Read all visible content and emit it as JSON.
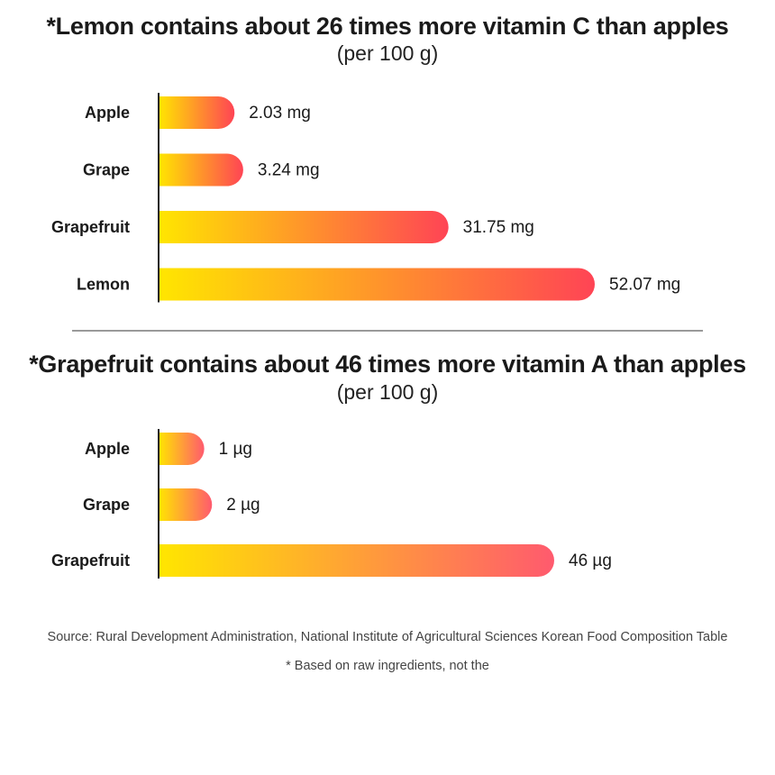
{
  "chart_data": [
    {
      "type": "bar",
      "orientation": "horizontal",
      "title": "*Lemon contains about 26 times more vitamin C than apples",
      "subtitle": "(per 100 g)",
      "categories": [
        "Apple",
        "Grape",
        "Grapefruit",
        "Lemon"
      ],
      "values": [
        2.03,
        3.24,
        31.75,
        52.07
      ],
      "value_labels": [
        "2.03 mg",
        "3.24 mg",
        "31.75 mg",
        "52.07 mg"
      ],
      "unit": "mg",
      "gradient": {
        "start": "#ffe600",
        "end": "#ff4455"
      }
    },
    {
      "type": "bar",
      "orientation": "horizontal",
      "title": "*Grapefruit contains about 46 times more vitamin A than apples",
      "subtitle": "(per 100 g)",
      "categories": [
        "Apple",
        "Grape",
        "Grapefruit"
      ],
      "values": [
        1,
        2,
        46
      ],
      "value_labels": [
        "1 µg",
        "2 µg",
        "46 µg"
      ],
      "unit": "µg",
      "gradient": {
        "start": "#ffe600",
        "end": "#ff5a6e"
      }
    }
  ],
  "footer": {
    "source": "Source: Rural Development Administration, National Institute of Agricultural Sciences Korean Food Composition Table",
    "note": "* Based on raw ingredients, not the"
  }
}
